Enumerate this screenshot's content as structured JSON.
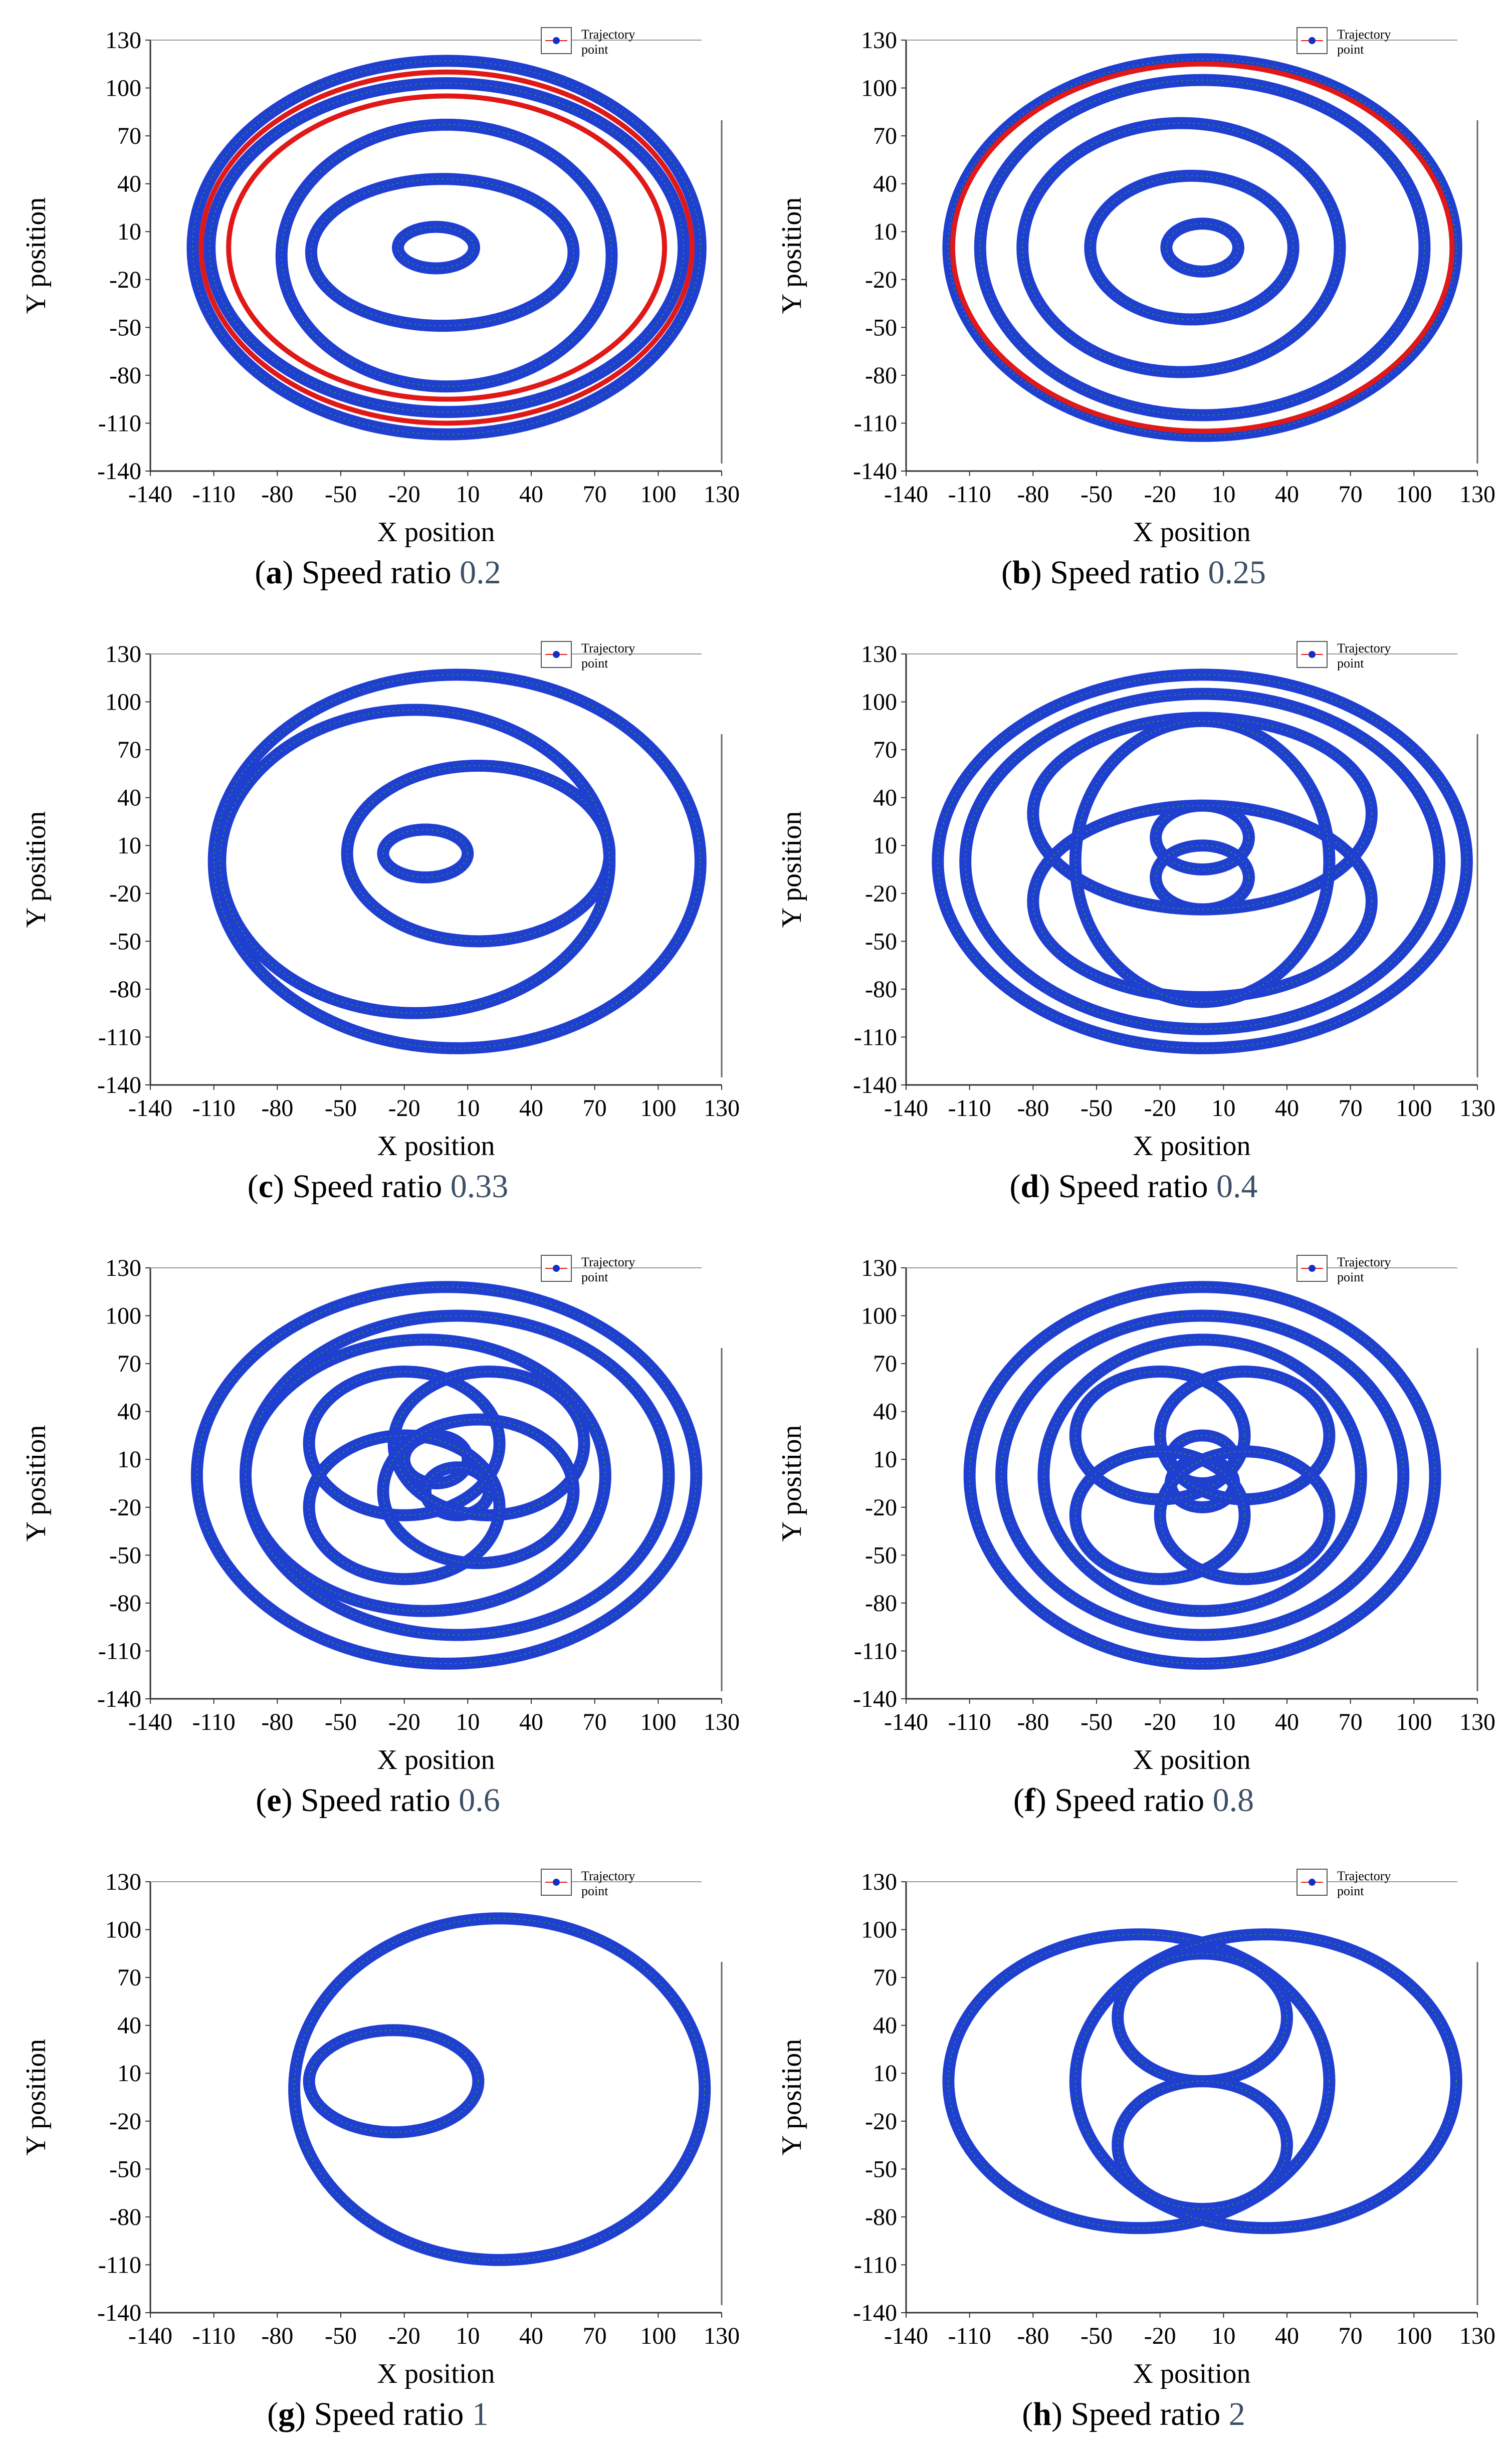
{
  "chart_data": [
    {
      "type": "scatter",
      "panel_id": "a",
      "caption_label": "a",
      "caption_text": "Speed ratio",
      "caption_value": "0.2",
      "speed_ratio": 0.2,
      "xlabel": "X position",
      "ylabel": "Y position",
      "xlim": [
        -140,
        130
      ],
      "ylim": [
        -140,
        130
      ],
      "xticks": [
        -140,
        -110,
        -80,
        -50,
        -20,
        10,
        40,
        70,
        100,
        130
      ],
      "yticks": [
        -140,
        -110,
        -80,
        -50,
        -20,
        10,
        40,
        70,
        100,
        130
      ],
      "legend": {
        "label": "Trajectory point",
        "position": "top-right"
      },
      "series": [
        {
          "kind": "ellipses",
          "color": "#1f3fd0",
          "curves": [
            [
              -5,
              0,
              18,
              13
            ],
            [
              -2,
              -3,
              62,
              46
            ],
            [
              0,
              -5,
              78,
              82
            ],
            [
              0,
              0,
              112,
              103
            ],
            [
              0,
              0,
              120,
              117
            ]
          ]
        },
        {
          "kind": "ellipses",
          "color": "#e01818",
          "curves": [
            [
              0,
              0,
              103,
              95
            ],
            [
              0,
              0,
              116,
              110
            ]
          ]
        }
      ]
    },
    {
      "type": "scatter",
      "panel_id": "b",
      "caption_label": "b",
      "caption_text": "Speed ratio",
      "caption_value": "0.25",
      "speed_ratio": 0.25,
      "xlabel": "X position",
      "ylabel": "Y position",
      "xlim": [
        -140,
        130
      ],
      "ylim": [
        -140,
        130
      ],
      "xticks": [
        -140,
        -110,
        -80,
        -50,
        -20,
        10,
        40,
        70,
        100,
        130
      ],
      "yticks": [
        -140,
        -110,
        -80,
        -50,
        -20,
        10,
        40,
        70,
        100,
        130
      ],
      "legend": {
        "label": "Trajectory point",
        "position": "top-right"
      },
      "series": [
        {
          "kind": "ellipses",
          "color": "#1f3fd0",
          "curves": [
            [
              0,
              0,
              17,
              15
            ],
            [
              -5,
              0,
              48,
              45
            ],
            [
              -10,
              0,
              75,
              78
            ],
            [
              0,
              0,
              105,
              105
            ],
            [
              0,
              0,
              120,
              118
            ]
          ]
        },
        {
          "kind": "ellipses",
          "color": "#e01818",
          "curves": [
            [
              0,
              0,
              118,
              115
            ]
          ]
        }
      ]
    },
    {
      "type": "scatter",
      "panel_id": "c",
      "caption_label": "c",
      "caption_text": "Speed ratio",
      "caption_value": "0.33",
      "speed_ratio": 0.33,
      "xlabel": "X position",
      "ylabel": "Y position",
      "xlim": [
        -140,
        130
      ],
      "ylim": [
        -140,
        130
      ],
      "xticks": [
        -140,
        -110,
        -80,
        -50,
        -20,
        10,
        40,
        70,
        100,
        130
      ],
      "yticks": [
        -140,
        -110,
        -80,
        -50,
        -20,
        10,
        40,
        70,
        100,
        130
      ],
      "legend": {
        "label": "Trajectory point",
        "position": "top-right"
      },
      "series": [
        {
          "kind": "ellipses",
          "color": "#1f3fd0",
          "curves": [
            [
              -10,
              5,
              20,
              15
            ],
            [
              15,
              5,
              62,
              55
            ],
            [
              -15,
              0,
              92,
              95
            ],
            [
              5,
              0,
              115,
              117
            ]
          ]
        }
      ]
    },
    {
      "type": "scatter",
      "panel_id": "d",
      "caption_label": "d",
      "caption_text": "Speed ratio",
      "caption_value": "0.4",
      "speed_ratio": 0.4,
      "xlabel": "X position",
      "ylabel": "Y position",
      "xlim": [
        -140,
        130
      ],
      "ylim": [
        -140,
        130
      ],
      "xticks": [
        -140,
        -110,
        -80,
        -50,
        -20,
        10,
        40,
        70,
        100,
        130
      ],
      "yticks": [
        -140,
        -110,
        -80,
        -50,
        -20,
        10,
        40,
        70,
        100,
        130
      ],
      "legend": {
        "label": "Trajectory point",
        "position": "top-right"
      },
      "series": [
        {
          "kind": "ellipses",
          "color": "#1f3fd0",
          "curves": [
            [
              0,
              15,
              22,
              20
            ],
            [
              0,
              -10,
              22,
              20
            ],
            [
              0,
              30,
              80,
              60
            ],
            [
              0,
              -25,
              80,
              60
            ],
            [
              0,
              0,
              60,
              88
            ],
            [
              0,
              0,
              112,
              105
            ],
            [
              0,
              0,
              125,
              117
            ]
          ]
        }
      ]
    },
    {
      "type": "scatter",
      "panel_id": "e",
      "caption_label": "e",
      "caption_text": "Speed ratio",
      "caption_value": "0.6",
      "speed_ratio": 0.6,
      "xlabel": "X position",
      "ylabel": "Y position",
      "xlim": [
        -140,
        130
      ],
      "ylim": [
        -140,
        130
      ],
      "xticks": [
        -140,
        -110,
        -80,
        -50,
        -20,
        10,
        40,
        70,
        100,
        130
      ],
      "yticks": [
        -140,
        -110,
        -80,
        -50,
        -20,
        10,
        40,
        70,
        100,
        130
      ],
      "legend": {
        "label": "Trajectory point",
        "position": "top-right"
      },
      "series": [
        {
          "kind": "ellipses",
          "color": "#1f3fd0",
          "curves": [
            [
              -5,
              10,
              15,
              15
            ],
            [
              5,
              -10,
              15,
              15
            ],
            [
              -20,
              20,
              45,
              45
            ],
            [
              20,
              20,
              45,
              45
            ],
            [
              -20,
              -20,
              45,
              45
            ],
            [
              15,
              -10,
              45,
              45
            ],
            [
              -10,
              0,
              85,
              85
            ],
            [
              5,
              0,
              100,
              100
            ],
            [
              0,
              0,
              118,
              118
            ]
          ]
        }
      ]
    },
    {
      "type": "scatter",
      "panel_id": "f",
      "caption_label": "f",
      "caption_text": "Speed ratio",
      "caption_value": "0.8",
      "speed_ratio": 0.8,
      "xlabel": "X position",
      "ylabel": "Y position",
      "xlim": [
        -140,
        130
      ],
      "ylim": [
        -140,
        130
      ],
      "xticks": [
        -140,
        -110,
        -80,
        -50,
        -20,
        10,
        40,
        70,
        100,
        130
      ],
      "yticks": [
        -140,
        -110,
        -80,
        -50,
        -20,
        10,
        40,
        70,
        100,
        130
      ],
      "legend": {
        "label": "Trajectory point",
        "position": "top-right"
      },
      "series": [
        {
          "kind": "ellipses",
          "color": "#1f3fd0",
          "curves": [
            [
              0,
              10,
              15,
              15
            ],
            [
              0,
              -5,
              15,
              15
            ],
            [
              -20,
              25,
              40,
              40
            ],
            [
              20,
              25,
              40,
              40
            ],
            [
              -20,
              -25,
              40,
              40
            ],
            [
              20,
              -25,
              40,
              40
            ],
            [
              0,
              0,
              75,
              85
            ],
            [
              0,
              0,
              95,
              100
            ],
            [
              0,
              0,
              110,
              118
            ]
          ]
        }
      ]
    },
    {
      "type": "scatter",
      "panel_id": "g",
      "caption_label": "g",
      "caption_text": "Speed ratio",
      "caption_value": "1",
      "speed_ratio": 1,
      "xlabel": "X position",
      "ylabel": "Y position",
      "xlim": [
        -140,
        130
      ],
      "ylim": [
        -140,
        130
      ],
      "xticks": [
        -140,
        -110,
        -80,
        -50,
        -20,
        10,
        40,
        70,
        100,
        130
      ],
      "yticks": [
        -140,
        -110,
        -80,
        -50,
        -20,
        10,
        40,
        70,
        100,
        130
      ],
      "legend": {
        "label": "Trajectory point",
        "position": "top-right"
      },
      "series": [
        {
          "kind": "ellipses",
          "color": "#1f3fd0",
          "curves": [
            [
              -25,
              5,
              40,
              32
            ],
            [
              25,
              0,
              97,
              107
            ]
          ]
        }
      ]
    },
    {
      "type": "scatter",
      "panel_id": "h",
      "caption_label": "h",
      "caption_text": "Speed ratio",
      "caption_value": "2",
      "speed_ratio": 2,
      "xlabel": "X position",
      "ylabel": "Y position",
      "xlim": [
        -140,
        130
      ],
      "ylim": [
        -140,
        130
      ],
      "xticks": [
        -140,
        -110,
        -80,
        -50,
        -20,
        10,
        40,
        70,
        100,
        130
      ],
      "yticks": [
        -140,
        -110,
        -80,
        -50,
        -20,
        10,
        40,
        70,
        100,
        130
      ],
      "legend": {
        "label": "Trajectory point",
        "position": "top-right"
      },
      "series": [
        {
          "kind": "ellipses",
          "color": "#1f3fd0",
          "curves": [
            [
              -30,
              5,
              90,
              92
            ],
            [
              30,
              5,
              90,
              92
            ],
            [
              0,
              45,
              40,
              40
            ],
            [
              0,
              -35,
              40,
              40
            ]
          ]
        }
      ]
    }
  ]
}
